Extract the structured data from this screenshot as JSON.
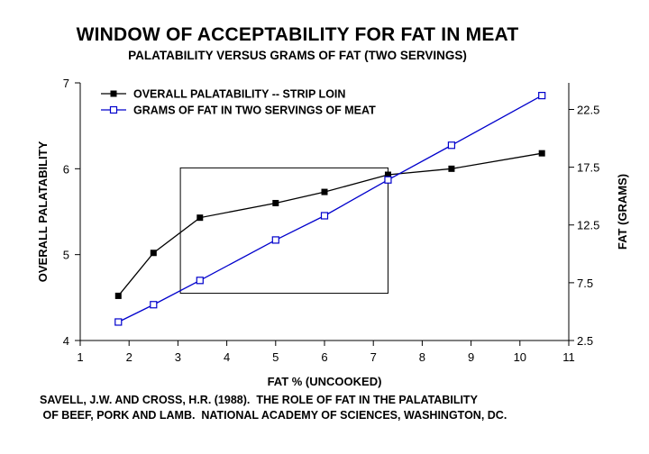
{
  "title": "WINDOW OF ACCEPTABILITY FOR FAT IN MEAT",
  "subtitle": "PALATABILITY VERSUS GRAMS OF FAT (TWO SERVINGS)",
  "source": {
    "line1": "SAVELL, J.W. AND CROSS, H.R. (1988).  THE ROLE OF FAT IN THE PALATABILITY",
    "line2": " OF BEEF, PORK AND LAMB.  NATIONAL ACADEMY OF SCIENCES, WASHINGTON, DC."
  },
  "chart_data": {
    "type": "line",
    "xlabel": "FAT % (UNCOOKED)",
    "ylabel": "OVERALL PALATABILITY",
    "y2label": "FAT (GRAMS)",
    "xlim": [
      1,
      11
    ],
    "ylim": [
      4,
      7
    ],
    "y2lim": [
      2.5,
      24.8
    ],
    "x_ticks": [
      1,
      2,
      3,
      4,
      5,
      6,
      7,
      8,
      9,
      10,
      11
    ],
    "y_ticks": [
      4,
      5,
      6,
      7
    ],
    "y2_ticks": [
      2.5,
      7.5,
      12.5,
      17.5,
      22.5
    ],
    "y2_tick_labels": [
      "2.5",
      "7.5",
      "12.5",
      "17.5",
      "22.5"
    ],
    "grid": false,
    "legend_position": "top-left",
    "series": [
      {
        "name": "OVERALL PALATABILITY -- STRIP LOIN",
        "axis": "left",
        "color": "#000000",
        "marker": "filled-square",
        "x": [
          1.78,
          2.5,
          3.45,
          5.0,
          6.0,
          7.3,
          8.6,
          10.45
        ],
        "y": [
          4.52,
          5.02,
          5.43,
          5.6,
          5.73,
          5.93,
          6.0,
          6.18
        ]
      },
      {
        "name": "GRAMS OF FAT IN TWO SERVINGS OF MEAT",
        "axis": "right",
        "color": "#0000cc",
        "marker": "open-square",
        "x": [
          1.78,
          2.5,
          3.45,
          5.0,
          6.0,
          7.3,
          8.6,
          10.45
        ],
        "y": [
          4.1,
          5.6,
          7.7,
          11.2,
          13.3,
          16.4,
          19.4,
          23.7
        ]
      }
    ],
    "annotations": [
      {
        "type": "rectangle",
        "x_range": [
          3.05,
          7.3
        ],
        "y_range": [
          4.55,
          6.01
        ]
      }
    ]
  }
}
